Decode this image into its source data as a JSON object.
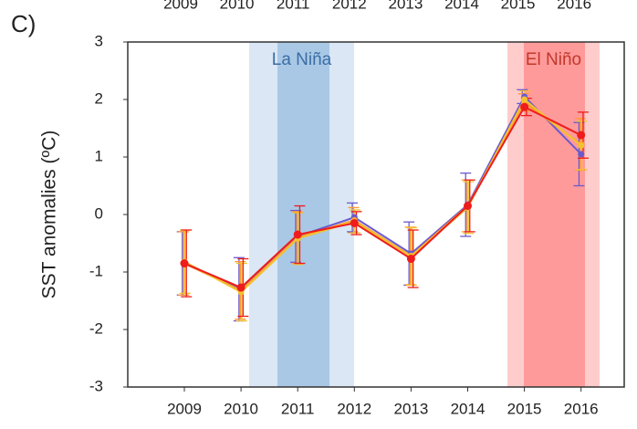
{
  "panel_label": "C)",
  "chart_data": {
    "type": "line",
    "y_label": "SST anomalies (ºC)",
    "categories": [
      "2009",
      "2010",
      "2011",
      "2012",
      "2013",
      "2014",
      "2015",
      "2016"
    ],
    "ylim": [
      -3,
      3
    ],
    "yticks": [
      -3,
      -2,
      -1,
      0,
      1,
      2,
      3
    ],
    "annotations": [
      {
        "text": "La Niña",
        "color": "#3a6ea5"
      },
      {
        "text": "El Niño",
        "color": "#c0392b"
      }
    ],
    "series": [
      {
        "color": "#6a5acd",
        "values": [
          -0.85,
          -1.3,
          -0.38,
          -0.05,
          -0.68,
          0.17,
          2.05,
          1.05
        ],
        "errors": [
          0.55,
          0.55,
          0.45,
          0.25,
          0.55,
          0.55,
          0.12,
          0.55
        ]
      },
      {
        "color": "#ff9a2e",
        "values": [
          -0.85,
          -1.32,
          -0.4,
          -0.1,
          -0.72,
          0.15,
          1.95,
          1.22
        ],
        "errors": [
          0.55,
          0.5,
          0.45,
          0.22,
          0.5,
          0.45,
          0.15,
          0.45
        ]
      },
      {
        "color": "#f2c230",
        "values": [
          -0.82,
          -1.35,
          -0.42,
          -0.12,
          -0.73,
          0.12,
          2.0,
          1.2
        ],
        "errors": [
          0.55,
          0.5,
          0.45,
          0.2,
          0.5,
          0.45,
          0.15,
          0.42
        ]
      },
      {
        "color": "#ee1c1c",
        "values": [
          -0.85,
          -1.27,
          -0.35,
          -0.15,
          -0.77,
          0.15,
          1.87,
          1.38
        ],
        "errors": [
          0.58,
          0.5,
          0.5,
          0.2,
          0.5,
          0.45,
          0.15,
          0.4
        ]
      }
    ]
  }
}
